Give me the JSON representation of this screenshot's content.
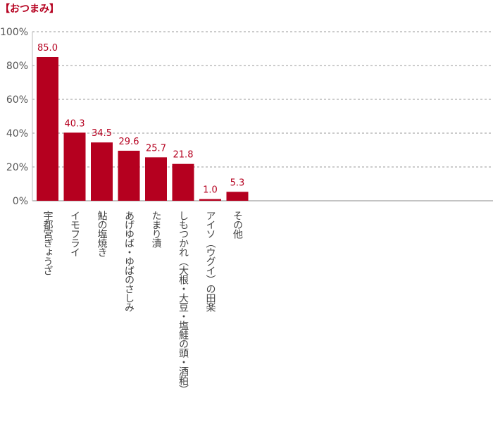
{
  "chart_data": {
    "type": "bar",
    "title": "【おつまみ】",
    "categories": [
      "宇都宮ぎょうざ",
      "イモフライ",
      "鮎の塩焼き",
      "あげゆば・ゆばのさしみ",
      "たまり漬",
      "しもつかれ（大根・大豆・塩鮭の頭・酒粕）",
      "アイソ（ウグイ）の田楽",
      "その他"
    ],
    "values": [
      85.0,
      40.3,
      34.5,
      29.6,
      25.7,
      21.8,
      1.0,
      5.3
    ],
    "data_labels": [
      "85.0",
      "40.3",
      "34.5",
      "29.6",
      "25.7",
      "21.8",
      "1.0",
      "5.3"
    ],
    "ylim": [
      0,
      100
    ],
    "yticks": [
      "0%",
      "20%",
      "40%",
      "60%",
      "80%",
      "100%"
    ],
    "ytick_values": [
      0,
      20,
      40,
      60,
      80,
      100
    ],
    "grid": true,
    "bar_color": "#b5001f",
    "xlabel": "",
    "ylabel": ""
  }
}
